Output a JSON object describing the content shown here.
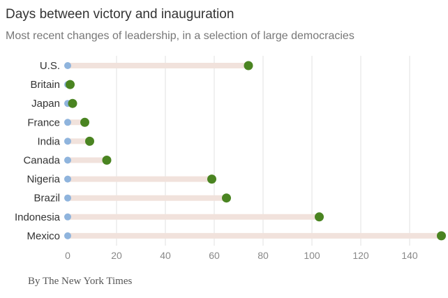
{
  "chart_data": {
    "type": "dumbbell",
    "title": "Days between victory and inauguration",
    "subtitle": "Most recent changes of leadership, in a selection of large democracies",
    "categories": [
      "U.S.",
      "Britain",
      "Japan",
      "France",
      "India",
      "Canada",
      "Nigeria",
      "Brazil",
      "Indonesia",
      "Mexico"
    ],
    "start_values": [
      0,
      0,
      0,
      0,
      0,
      0,
      0,
      0,
      0,
      0
    ],
    "values": [
      74,
      1,
      2,
      7,
      9,
      16,
      59,
      65,
      103,
      153
    ],
    "xticks": [
      0,
      20,
      40,
      60,
      80,
      100,
      120,
      140
    ],
    "xlim": [
      0,
      153
    ],
    "grid": true,
    "colors": {
      "start": "#8fb4dd",
      "end": "#4a8421",
      "bar": "#f1e2dc",
      "grid": "#e2e2e2"
    }
  },
  "byline": "By The New York Times"
}
